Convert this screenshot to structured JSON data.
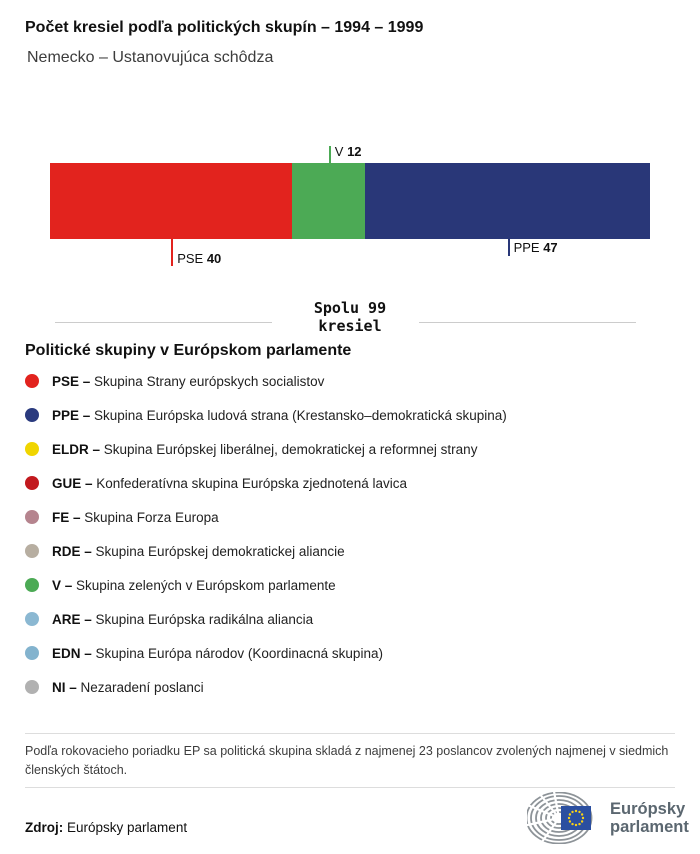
{
  "header": {
    "title": "Počet kresiel podľa politických skupín – 1994 – 1999",
    "subtitle": "Nemecko – Ustanovujúca schôdza"
  },
  "chart_data": {
    "type": "bar",
    "variant": "horizontal-stacked-seats",
    "total_seats": 99,
    "total_label_line1": "Spolu 99",
    "total_label_line2": "kresiel",
    "segments": [
      {
        "abbr": "PSE",
        "seats": 40,
        "color": "#e2231e",
        "label_position": "below",
        "label_level": 2
      },
      {
        "abbr": "V",
        "seats": 12,
        "color": "#4caa55",
        "label_position": "above",
        "label_level": 1
      },
      {
        "abbr": "PPE",
        "seats": 47,
        "color": "#293778",
        "label_position": "below",
        "label_level": 1
      }
    ]
  },
  "legend": {
    "heading": "Politické skupiny v Európskom parlamente",
    "items": [
      {
        "abbr": "PSE",
        "desc": "Skupina Strany európskych socialistov",
        "color": "#e2231e"
      },
      {
        "abbr": "PPE",
        "desc": "Skupina Európska ludová strana (Krestansko–demokratická skupina)",
        "color": "#2a3a7e"
      },
      {
        "abbr": "ELDR",
        "desc": "Skupina Európskej liberálnej, demokratickej a reformnej strany",
        "color": "#f0d500"
      },
      {
        "abbr": "GUE",
        "desc": "Konfederatívna skupina Európska zjednotená lavica",
        "color": "#c2191e"
      },
      {
        "abbr": "FE",
        "desc": "Skupina Forza Europa",
        "color": "#b5848e"
      },
      {
        "abbr": "RDE",
        "desc": "Skupina Európskej demokratickej aliancie",
        "color": "#b7aea1"
      },
      {
        "abbr": "V",
        "desc": "Skupina zelených v Európskom parlamente",
        "color": "#4caa55"
      },
      {
        "abbr": "ARE",
        "desc": "Skupina Európska radikálna aliancia",
        "color": "#8bb8d2"
      },
      {
        "abbr": "EDN",
        "desc": "Skupina Európa národov (Koordinacná skupina)",
        "color": "#83b3ce"
      },
      {
        "abbr": "NI",
        "desc": "Nezaradení poslanci",
        "color": "#b1b1b1"
      }
    ]
  },
  "footer": {
    "note": "Podľa rokovacieho poriadku EP sa politická skupina skladá z najmenej 23 poslancov zvolených najmenej v siedmich členských štátoch.",
    "source_label": "Zdroj:",
    "source_value": "Európsky parlament",
    "logo": {
      "line1": "Európsky",
      "line2": "parlament"
    }
  }
}
